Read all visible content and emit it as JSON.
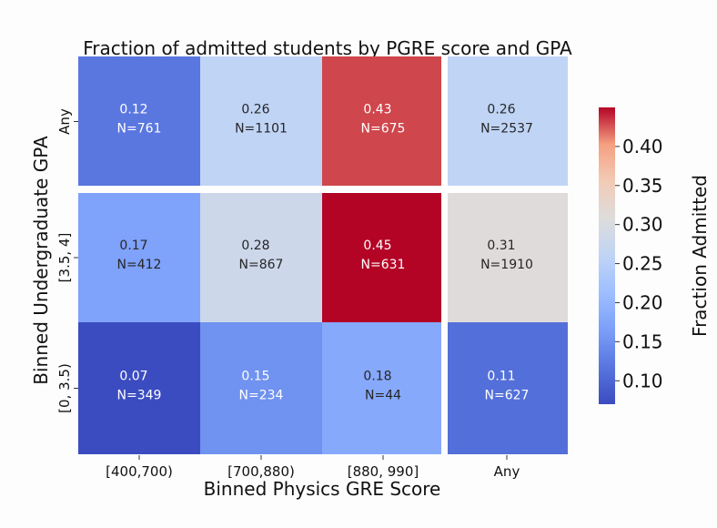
{
  "chart_data": {
    "type": "heatmap",
    "title": "Fraction of admitted students by PGRE score and GPA",
    "xlabel": "Binned Physics GRE Score",
    "ylabel": "Binned Undergraduate GPA",
    "x_categories": [
      "[400,700)",
      "[700,880)",
      "[880, 990]",
      "Any"
    ],
    "y_categories": [
      "Any",
      "[3.5, 4]",
      "[0, 3.5)"
    ],
    "values": [
      [
        0.12,
        0.26,
        0.43,
        0.26
      ],
      [
        0.17,
        0.28,
        0.45,
        0.31
      ],
      [
        0.07,
        0.15,
        0.18,
        0.11
      ]
    ],
    "counts": [
      [
        "N=761",
        "N=1101",
        "N=675",
        "N=2537"
      ],
      [
        "N=412",
        "N=867",
        "N=631",
        "N=1910"
      ],
      [
        "N=349",
        "N=234",
        "N=44",
        "N=627"
      ]
    ],
    "value_labels": [
      [
        "0.12",
        "0.26",
        "0.43",
        "0.26"
      ],
      [
        "0.17",
        "0.28",
        "0.45",
        "0.31"
      ],
      [
        "0.07",
        "0.15",
        "0.18",
        "0.11"
      ]
    ],
    "colorbar": {
      "label": "Fraction Admitted",
      "colormap": "coolwarm",
      "range": [
        0.07,
        0.45
      ],
      "ticks": [
        0.1,
        0.15,
        0.2,
        0.25,
        0.3,
        0.35,
        0.4
      ],
      "tick_labels": [
        "0.10",
        "0.15",
        "0.20",
        "0.25",
        "0.30",
        "0.35",
        "0.40"
      ]
    }
  }
}
